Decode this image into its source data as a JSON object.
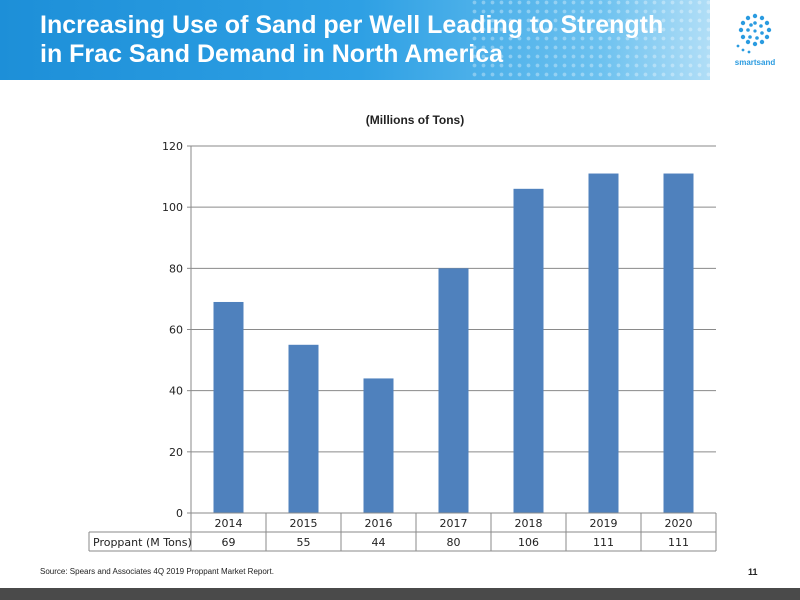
{
  "slide": {
    "title": "Increasing Use of Sand per Well Leading to Strength in Frac Sand Demand in North America",
    "logo_text": "smartsand",
    "source": "Source: Spears and Associates 4Q 2019 Proppant Market Report.",
    "page_number": "11",
    "colors": {
      "header": "#1d8fd8",
      "bar": "#4f81bd",
      "footer": "#4a4a4a"
    }
  },
  "chart_data": {
    "type": "bar",
    "title": "(Millions of Tons)",
    "categories": [
      "2014",
      "2015",
      "2016",
      "2017",
      "2018",
      "2019",
      "2020"
    ],
    "series": [
      {
        "name": "Proppant (M Tons)",
        "values": [
          69,
          55,
          44,
          80,
          106,
          111,
          111
        ]
      }
    ],
    "yticks": [
      "0",
      "20",
      "40",
      "60",
      "80",
      "100",
      "120"
    ],
    "ylim": [
      0,
      120
    ],
    "grid": true,
    "data_table": true
  }
}
